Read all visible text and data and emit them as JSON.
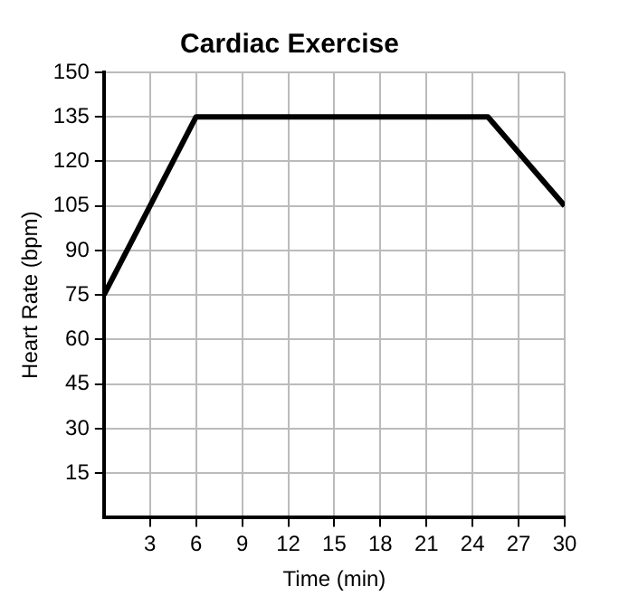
{
  "chart_data": {
    "type": "line",
    "title": "Cardiac Exercise",
    "xlabel": "Time (min)",
    "ylabel": "Heart Rate (bpm)",
    "x": [
      0,
      6,
      25,
      30
    ],
    "series": [
      {
        "color": "#000000",
        "values": [
          75,
          135,
          135,
          105
        ]
      }
    ],
    "xlim": [
      0,
      30
    ],
    "xticks": [
      3,
      6,
      9,
      12,
      15,
      18,
      21,
      24,
      27,
      30
    ],
    "ylim": [
      0,
      150
    ],
    "yticks": [
      15,
      30,
      45,
      60,
      75,
      90,
      105,
      120,
      135,
      150
    ],
    "grid": true,
    "legend": false,
    "marker": "none",
    "line_style": "solid"
  }
}
